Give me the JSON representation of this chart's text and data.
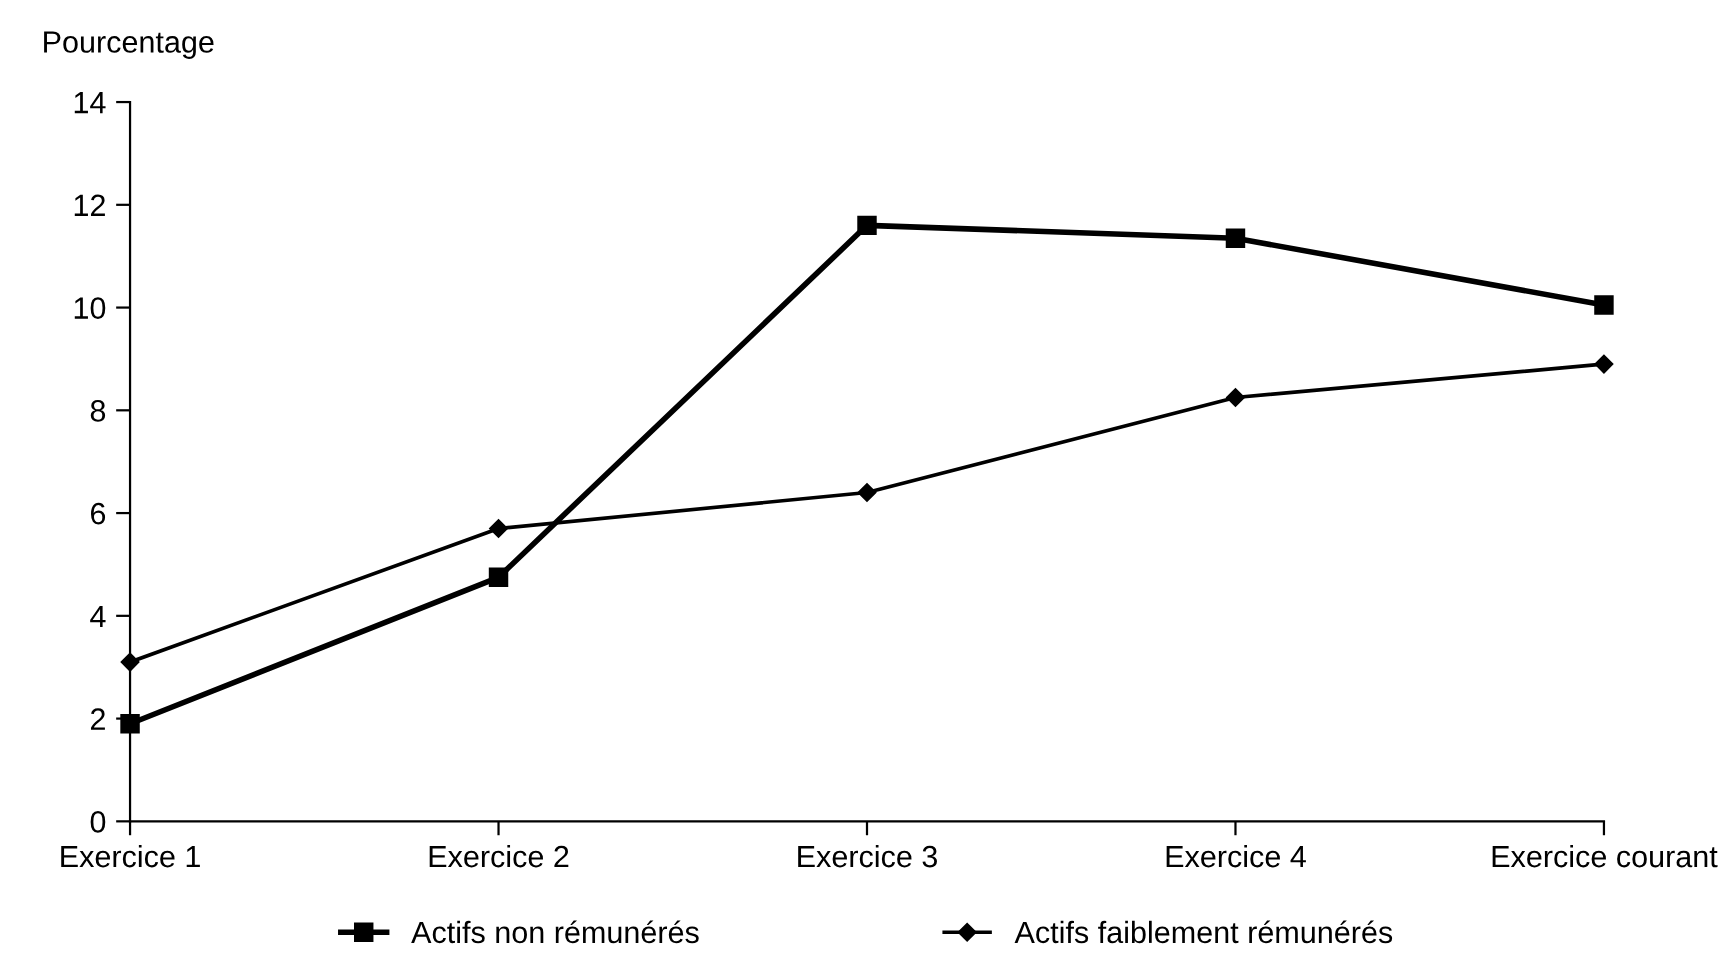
{
  "chart_data": {
    "type": "line",
    "ylabel": "Pourcentage",
    "categories": [
      "Exercice 1",
      "Exercice 2",
      "Exercice 3",
      "Exercice 4",
      "Exercice courant"
    ],
    "series": [
      {
        "name": "Actifs non rémunérés",
        "color": "#000000",
        "marker": "square",
        "values": [
          1.9,
          4.75,
          11.6,
          11.35,
          10.05
        ]
      },
      {
        "name": "Actifs faiblement rémunérés",
        "color": "#000000",
        "marker": "diamond",
        "values": [
          3.1,
          5.7,
          6.4,
          8.25,
          8.9
        ]
      }
    ],
    "ylim": [
      0,
      14
    ],
    "yticks": [
      0,
      2,
      4,
      6,
      8,
      10,
      12,
      14
    ],
    "grid": false,
    "legend": "bottom",
    "line_style": "solid"
  }
}
